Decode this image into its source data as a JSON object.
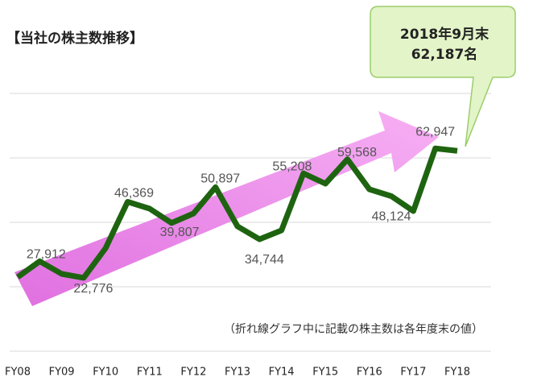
{
  "chart_data": {
    "type": "line",
    "title": "【当社の株主数推移】",
    "note": "（折れ線グラフ中に記載の株主数は各年度末の値）",
    "annotation": [
      "2018年9月末",
      "62,187名"
    ],
    "categories": [
      "FY08",
      null,
      "FY09",
      null,
      "FY10",
      null,
      "FY11",
      null,
      "FY12",
      null,
      "FY13",
      null,
      "FY14",
      null,
      "FY15",
      null,
      "FY16",
      null,
      "FY17",
      null,
      "FY18"
    ],
    "series": [
      {
        "name": "株主数",
        "color": "#1e6410",
        "values": [
          23000,
          27912,
          24000,
          22776,
          32000,
          46369,
          44250,
          39807,
          42750,
          50897,
          38750,
          34744,
          37500,
          55208,
          52000,
          59568,
          50250,
          48124,
          43500,
          62947,
          62187
        ],
        "value_labels": [
          null,
          "27,912",
          null,
          "22,776",
          null,
          "46,369",
          null,
          "39,807",
          null,
          "50,897",
          null,
          "34,744",
          null,
          "55,208",
          null,
          "59,568",
          null,
          "48,124",
          null,
          "62,947",
          null
        ]
      }
    ],
    "ylim": [
      0,
      80000
    ],
    "yticks": [
      0,
      20000,
      40000,
      60000,
      80000
    ],
    "grid": true,
    "show_tick_labels": false
  }
}
